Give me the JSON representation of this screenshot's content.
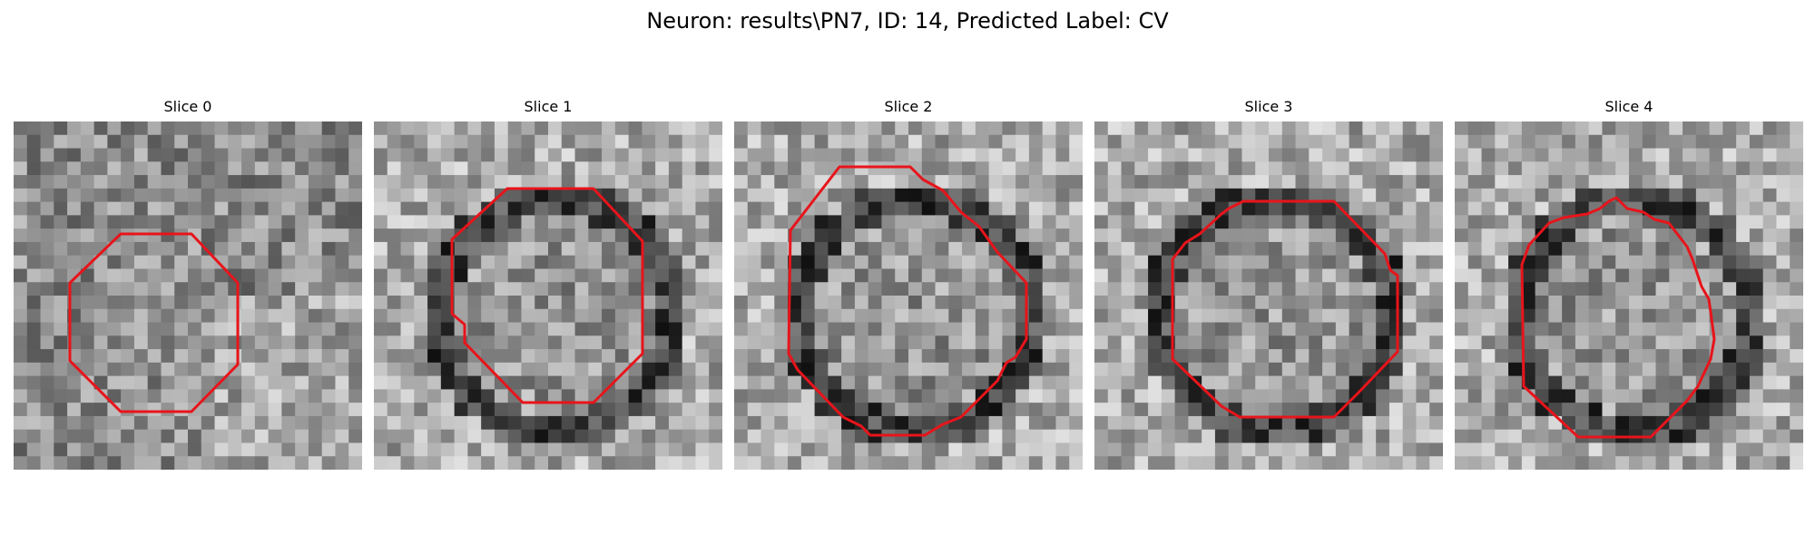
{
  "figure": {
    "title": "Neuron: results\\PN7, ID: 14, Predicted Label: CV"
  },
  "panels": [
    {
      "title": "Slice 0",
      "seed": 11,
      "tone": "lighter"
    },
    {
      "title": "Slice 1",
      "seed": 23,
      "tone": "ring"
    },
    {
      "title": "Slice 2",
      "seed": 37,
      "tone": "ring"
    },
    {
      "title": "Slice 3",
      "seed": 41,
      "tone": "ring"
    },
    {
      "title": "Slice 4",
      "seed": 53,
      "tone": "ring"
    }
  ],
  "colors": {
    "contour": "#e8141b",
    "background": "#ffffff"
  }
}
